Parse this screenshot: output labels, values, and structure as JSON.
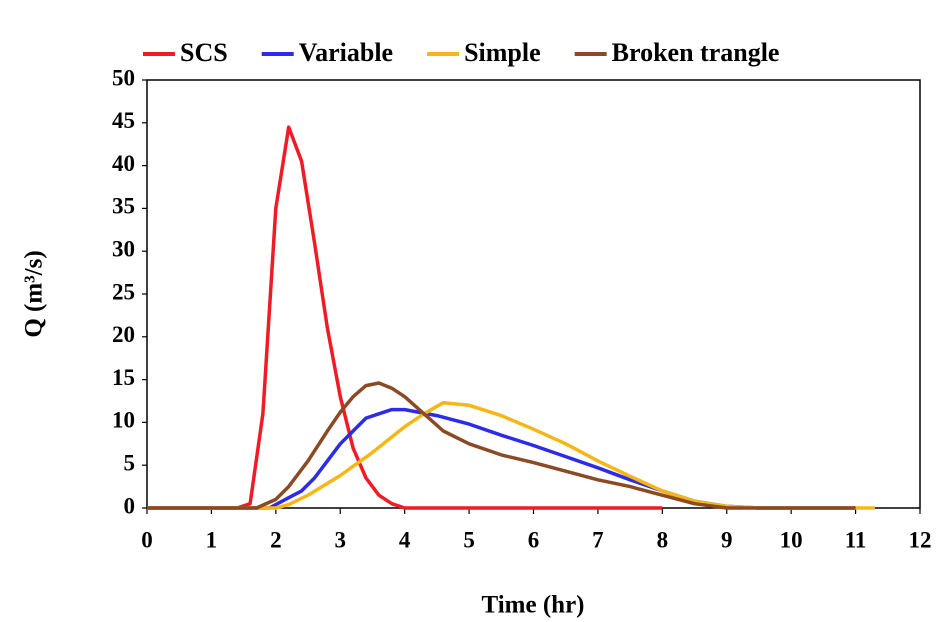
{
  "chart_data": {
    "type": "line",
    "x_label": "Time (hr)",
    "y_label": "Q (m³/s)",
    "xlim": [
      0,
      12
    ],
    "ylim": [
      0,
      50
    ],
    "xticks": [
      0,
      1,
      2,
      3,
      4,
      5,
      6,
      7,
      8,
      9,
      10,
      11,
      12
    ],
    "yticks": [
      0,
      5,
      10,
      15,
      20,
      25,
      30,
      35,
      40,
      45,
      50
    ],
    "grid": false,
    "legend": "top",
    "series": [
      {
        "name": "SCS",
        "color": "#ee1c25",
        "x": [
          0,
          1.4,
          1.6,
          1.8,
          2.0,
          2.2,
          2.4,
          2.6,
          2.8,
          3.0,
          3.2,
          3.4,
          3.6,
          3.8,
          4.0,
          8.0
        ],
        "values": [
          0,
          0,
          0.5,
          11,
          35,
          44.5,
          40.5,
          31,
          21,
          13,
          7,
          3.5,
          1.5,
          0.5,
          0,
          0
        ]
      },
      {
        "name": "Variable",
        "color": "#2b2be8",
        "x": [
          0,
          1.9,
          2.2,
          2.4,
          2.6,
          2.8,
          3.0,
          3.2,
          3.4,
          3.6,
          3.8,
          4.0,
          4.5,
          5.0,
          5.5,
          6.0,
          6.5,
          7.0,
          7.5,
          8.0,
          8.5,
          9.0,
          9.5,
          11.0
        ],
        "values": [
          0,
          0,
          1.2,
          2,
          3.5,
          5.5,
          7.5,
          9,
          10.5,
          11,
          11.5,
          11.5,
          10.8,
          9.8,
          8.5,
          7.3,
          6,
          4.7,
          3.3,
          2,
          0.8,
          0.2,
          0,
          0
        ]
      },
      {
        "name": "Simple",
        "color": "#f5b617",
        "x": [
          0,
          2.0,
          2.2,
          2.5,
          3.0,
          3.5,
          4.0,
          4.3,
          4.6,
          5.0,
          5.5,
          6.0,
          6.5,
          7.0,
          7.5,
          8.0,
          8.5,
          9.0,
          9.5,
          11.3
        ],
        "values": [
          0,
          0,
          0.4,
          1.5,
          3.8,
          6.5,
          9.5,
          11,
          12.3,
          12,
          10.8,
          9.2,
          7.5,
          5.5,
          3.7,
          2,
          0.8,
          0.2,
          0,
          0
        ]
      },
      {
        "name": "Broken trangle",
        "color": "#8b4a24",
        "x": [
          0,
          1.7,
          2.0,
          2.2,
          2.5,
          2.8,
          3.0,
          3.2,
          3.4,
          3.6,
          3.8,
          4.0,
          4.3,
          4.6,
          5.0,
          5.5,
          6.0,
          6.5,
          7.0,
          7.5,
          8.0,
          8.5,
          9.0,
          11.0
        ],
        "values": [
          0,
          0,
          1,
          2.5,
          5.5,
          9,
          11.2,
          13,
          14.3,
          14.6,
          14,
          13,
          11,
          9,
          7.5,
          6.2,
          5.3,
          4.3,
          3.3,
          2.5,
          1.5,
          0.5,
          0,
          0
        ]
      }
    ]
  }
}
